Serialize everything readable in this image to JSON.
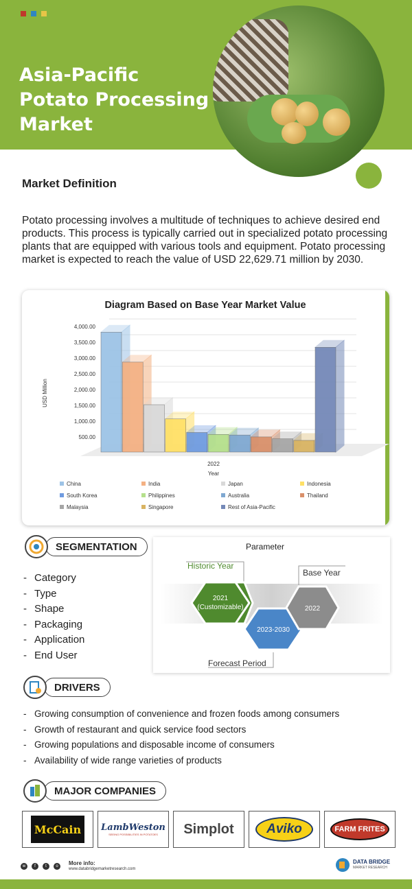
{
  "header": {
    "title_lines": [
      "Asia-Pacific",
      "Potato Processing",
      "Market"
    ],
    "accent": "#8ab43d"
  },
  "definition": {
    "heading": "Market Definition",
    "text": "Potato processing involves a multitude of techniques to achieve desired end products. This process is typically carried out in specialized potato processing plants that are equipped with various tools and equipment. Potato processing market is expected to reach the value of USD 22,629.71 million by 2030."
  },
  "chart_data": {
    "type": "bar",
    "title": "Diagram Based on Base Year Market Value",
    "ylabel": "USD Million",
    "xlabel": "Year",
    "categories": [
      "2022"
    ],
    "ylim": [
      0,
      4000
    ],
    "yticks": [
      "-",
      "500.00",
      "1,000.00",
      "1,500.00",
      "2,000.00",
      "2,500.00",
      "3,000.00",
      "3,500.00",
      "4,000.00"
    ],
    "series": [
      {
        "name": "China",
        "values": [
          3800
        ],
        "color": "#9dc3e6"
      },
      {
        "name": "India",
        "values": [
          2850
        ],
        "color": "#f4b183"
      },
      {
        "name": "Japan",
        "values": [
          1500
        ],
        "color": "#d9d9d9"
      },
      {
        "name": "Indonesia",
        "values": [
          1050
        ],
        "color": "#ffe066"
      },
      {
        "name": "South Korea",
        "values": [
          620
        ],
        "color": "#6f9be0"
      },
      {
        "name": "Philippines",
        "values": [
          560
        ],
        "color": "#b5e08c"
      },
      {
        "name": "Australia",
        "values": [
          540
        ],
        "color": "#7fa8d1"
      },
      {
        "name": "Thailand",
        "values": [
          480
        ],
        "color": "#d9906a"
      },
      {
        "name": "Malaysia",
        "values": [
          420
        ],
        "color": "#a6a6a6"
      },
      {
        "name": "Singapore",
        "values": [
          370
        ],
        "color": "#d9b462"
      },
      {
        "name": "Rest of Asia-Pacific",
        "values": [
          3320
        ],
        "color": "#7489b8"
      }
    ],
    "legend": "bottom"
  },
  "segmentation": {
    "label": "SEGMENTATION",
    "items": [
      "Category",
      "Type",
      "Shape",
      "Packaging",
      "Application",
      "End User"
    ]
  },
  "parameter": {
    "title": "Parameter",
    "historic_label": "Historic Year",
    "historic_value": "2021",
    "historic_note": "(Customizable)",
    "forecast_label": "Forecast Period",
    "forecast_value": "2023-2030",
    "base_label": "Base Year",
    "base_value": "2022",
    "colors": {
      "historic": "#4f8a2e",
      "forecast": "#4a86c8",
      "base": "#8c8c8c"
    }
  },
  "drivers": {
    "label": "DRIVERS",
    "items": [
      "Growing consumption of convenience and frozen foods among consumers",
      "Growth of restaurant and quick service food sectors",
      "Growing populations and disposable income of consumers",
      "Availability of wide range varieties of products"
    ]
  },
  "companies": {
    "label": "MAJOR COMPANIES",
    "logos": [
      {
        "name": "McCain",
        "icon": "mccain-logo"
      },
      {
        "name": "LambWeston",
        "sub": "SEEING POSSIBILITIES IN POTATOES",
        "icon": "lambweston-logo"
      },
      {
        "name": "Simplot",
        "icon": "simplot-logo"
      },
      {
        "name": "Aviko",
        "icon": "aviko-logo"
      },
      {
        "name": "FARM FRITES",
        "icon": "farmfrites-logo"
      }
    ]
  },
  "footer": {
    "more_info": "More info:",
    "url": "www.databridgemarketresearch.com",
    "brand": "DATA BRIDGE",
    "brand_sub": "MARKET RESEARCH"
  }
}
